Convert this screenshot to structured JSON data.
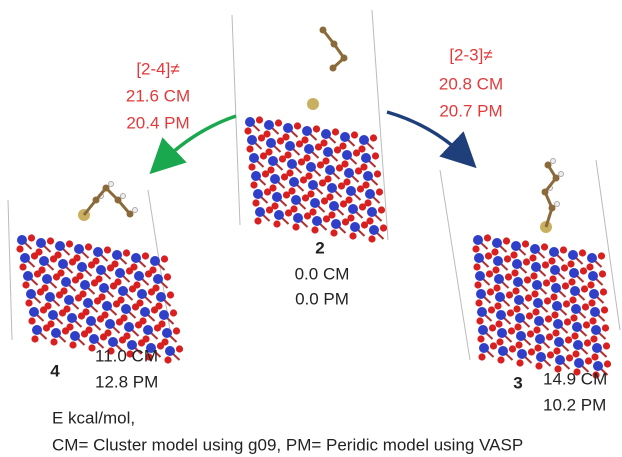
{
  "transitions": [
    {
      "label": "[2-4]≠",
      "energies": [
        "21.6  CM",
        "20.4  PM"
      ]
    },
    {
      "label": "[2-3]≠",
      "energies": [
        "20.8  CM",
        "20.7  PM"
      ]
    }
  ],
  "structures": [
    {
      "id": "2",
      "energies": [
        "0.0  CM",
        "0.0  PM"
      ]
    },
    {
      "id": "4",
      "energies": [
        "11.0  CM",
        "12.8  PM"
      ]
    },
    {
      "id": "3",
      "energies": [
        "14.9  CM",
        "10.2  PM"
      ]
    }
  ],
  "footnote": [
    "E kcal/mol,",
    "CM= Cluster model using g09, PM= Peridic model using VASP"
  ]
}
